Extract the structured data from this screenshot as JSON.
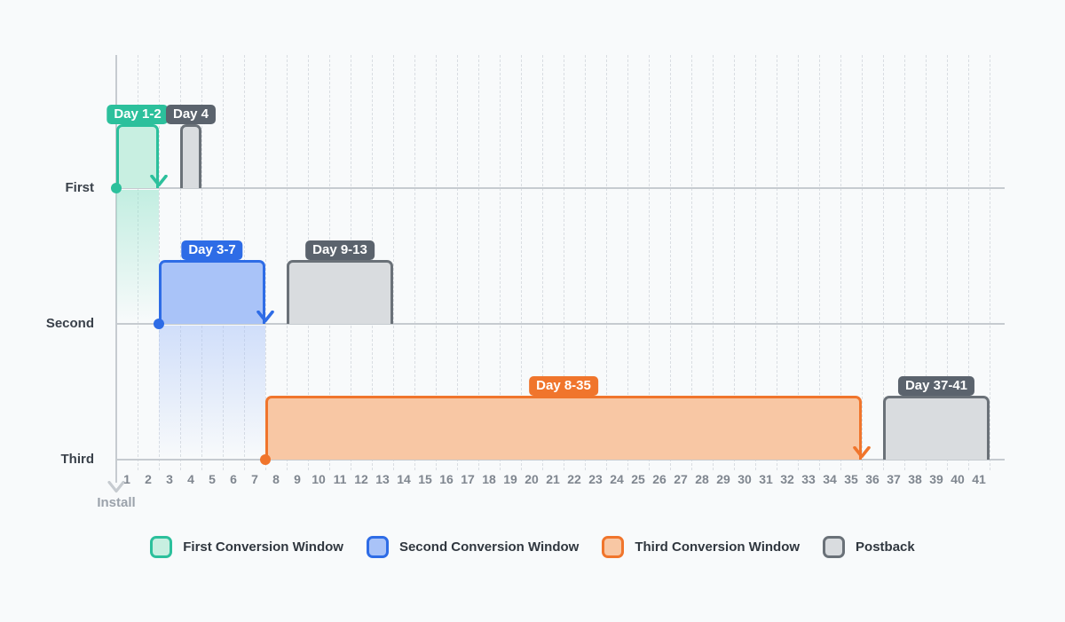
{
  "colors": {
    "bg": "#f8fafb",
    "axis": "#c6cbd0",
    "grid": "#d9dde2",
    "teal": "#2cc09c",
    "teal_fill": "#c8efe1",
    "teal_fade": "rgba(141,226,199,0.5)",
    "blue": "#2e6ce6",
    "blue_fill": "#a9c3f8",
    "blue_fade": "rgba(169,195,248,0.5)",
    "orange": "#f0752c",
    "orange_fill": "#f8c7a4",
    "gray": "#6a7178",
    "gray_fill": "#d9dcdf",
    "gray_badge": "#5b636d",
    "badge_text": "#ffffff",
    "row_label": "#3a414a",
    "day_label": "#7f868f",
    "install": "#9ba2ab",
    "legend_text": "#30373f"
  },
  "axis": {
    "install_label": "Install"
  },
  "legend": [
    {
      "key": "teal",
      "label": "First Conversion Window"
    },
    {
      "key": "blue",
      "label": "Second Conversion Window"
    },
    {
      "key": "orange",
      "label": "Third Conversion Window"
    },
    {
      "key": "gray",
      "label": "Postback"
    }
  ],
  "chart_data": {
    "type": "bar",
    "variant": "gantt-timeline-ranges",
    "grid": "vertical-dashed-per-day",
    "legend_position": "bottom-center",
    "x_axis": {
      "unit": "day",
      "min": 1,
      "max": 41,
      "ticks": [
        1,
        2,
        3,
        4,
        5,
        6,
        7,
        8,
        9,
        10,
        11,
        12,
        13,
        14,
        15,
        16,
        17,
        18,
        19,
        20,
        21,
        22,
        23,
        24,
        25,
        26,
        27,
        28,
        29,
        30,
        31,
        32,
        33,
        34,
        35,
        36,
        37,
        38,
        39,
        40,
        41
      ]
    },
    "install_marker": {
      "label": "Install",
      "day_position": "start of day 1"
    },
    "rows": [
      {
        "row_label": "First",
        "fade_below": true,
        "conversion_window": {
          "label": "Day 1-2",
          "start": 1,
          "end": 2,
          "color": "teal"
        },
        "postback": {
          "label": "Day 4",
          "start": 4,
          "end": 4
        }
      },
      {
        "row_label": "Second",
        "fade_below": true,
        "conversion_window": {
          "label": "Day 3-7",
          "start": 3,
          "end": 7,
          "color": "blue"
        },
        "postback": {
          "label": "Day 9-13",
          "start": 9,
          "end": 13
        }
      },
      {
        "row_label": "Third",
        "fade_below": false,
        "conversion_window": {
          "label": "Day 8-35",
          "start": 8,
          "end": 35,
          "color": "orange"
        },
        "postback": {
          "label": "Day 37-41",
          "start": 37,
          "end": 41
        }
      }
    ]
  }
}
